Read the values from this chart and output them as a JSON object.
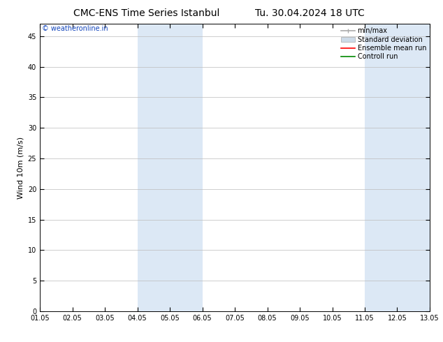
{
  "title_left": "CMC-ENS Time Series Istanbul",
  "title_right": "Tu. 30.04.2024 18 UTC",
  "ylabel": "Wind 10m (m/s)",
  "ylim": [
    0,
    47
  ],
  "yticks": [
    0,
    5,
    10,
    15,
    20,
    25,
    30,
    35,
    40,
    45
  ],
  "xtick_labels": [
    "01.05",
    "02.05",
    "03.05",
    "04.05",
    "05.05",
    "06.05",
    "07.05",
    "08.05",
    "09.05",
    "10.05",
    "11.05",
    "12.05",
    "13.05"
  ],
  "xtick_positions": [
    0,
    1,
    2,
    3,
    4,
    5,
    6,
    7,
    8,
    9,
    10,
    11,
    12
  ],
  "shaded_bands": [
    [
      3,
      4
    ],
    [
      4,
      5
    ],
    [
      10,
      11
    ],
    [
      11,
      12
    ]
  ],
  "band_color": "#dce8f5",
  "background_color": "#ffffff",
  "plot_bg_color": "#ffffff",
  "copyright_text": "© weatheronline.in",
  "copyright_color": "#1144bb",
  "legend_items": [
    {
      "label": "min/max",
      "color": "#aaaaaa",
      "lw": 1.2
    },
    {
      "label": "Standard deviation",
      "color": "#cddbe8",
      "lw": 6
    },
    {
      "label": "Ensemble mean run",
      "color": "#ff0000",
      "lw": 1.2
    },
    {
      "label": "Controll run",
      "color": "#008800",
      "lw": 1.2
    }
  ],
  "title_fontsize": 10,
  "tick_fontsize": 7,
  "ylabel_fontsize": 8,
  "copyright_fontsize": 7,
  "legend_fontsize": 7,
  "grid_color": "#bbbbbb"
}
